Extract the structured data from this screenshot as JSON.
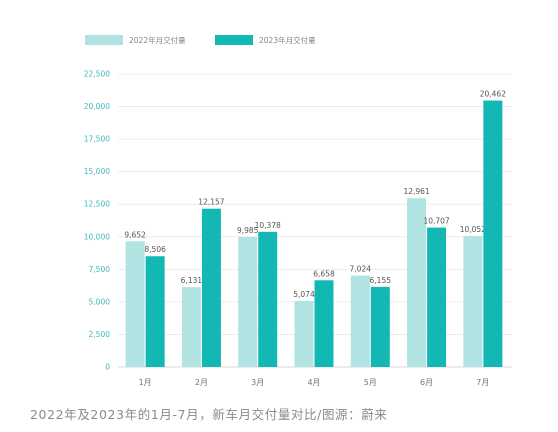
{
  "chart_data": {
    "type": "bar",
    "categories": [
      "1月",
      "2月",
      "3月",
      "4月",
      "5月",
      "6月",
      "7月"
    ],
    "series": [
      {
        "name": "2022年月交付量",
        "color": "#b2e3e3",
        "values": [
          9652,
          6131,
          9985,
          5074,
          7024,
          12961,
          10052
        ],
        "labels": [
          "9,652",
          "6,131",
          "9,985",
          "5,074",
          "7,024",
          "12,961",
          "10,052"
        ]
      },
      {
        "name": "2023年月交付量",
        "color": "#13b8b5",
        "values": [
          8506,
          12157,
          10378,
          6658,
          6155,
          10707,
          20462
        ],
        "labels": [
          "8,506",
          "12,157",
          "10,378",
          "6,658",
          "6,155",
          "10,707",
          "20,462"
        ]
      }
    ],
    "yticks": [
      "0",
      "2,500",
      "5,000",
      "7,500",
      "10,000",
      "12,500",
      "15,000",
      "17,500",
      "20,000",
      "22,500"
    ],
    "ylim": [
      0,
      22500
    ],
    "grid": true,
    "legend": "top-left"
  },
  "caption": "2022年及2023年的1月-7月，新车月交付量对比/图源：蔚来"
}
